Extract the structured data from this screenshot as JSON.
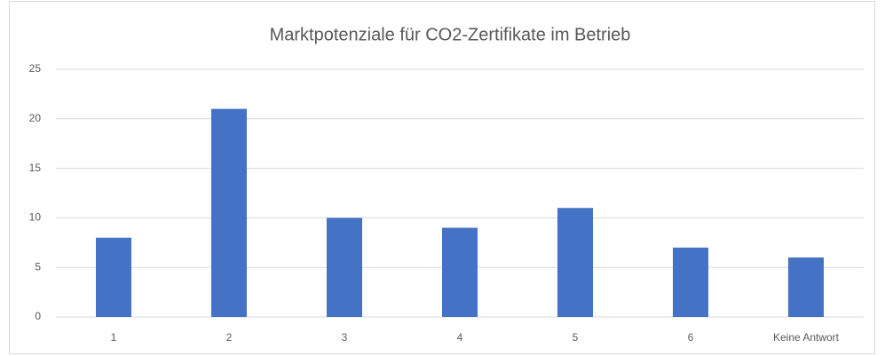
{
  "chart_data": {
    "type": "bar",
    "title": "Marktpotenziale für CO2-Zertifikate im Betrieb",
    "categories": [
      "1",
      "2",
      "3",
      "4",
      "5",
      "6",
      "Keine Antwort"
    ],
    "values": [
      8,
      21,
      10,
      9,
      11,
      7,
      6
    ],
    "color": "#4472c4",
    "ylim": [
      0,
      25
    ],
    "yticks": [
      0,
      5,
      10,
      15,
      20,
      25
    ],
    "grid": true
  }
}
